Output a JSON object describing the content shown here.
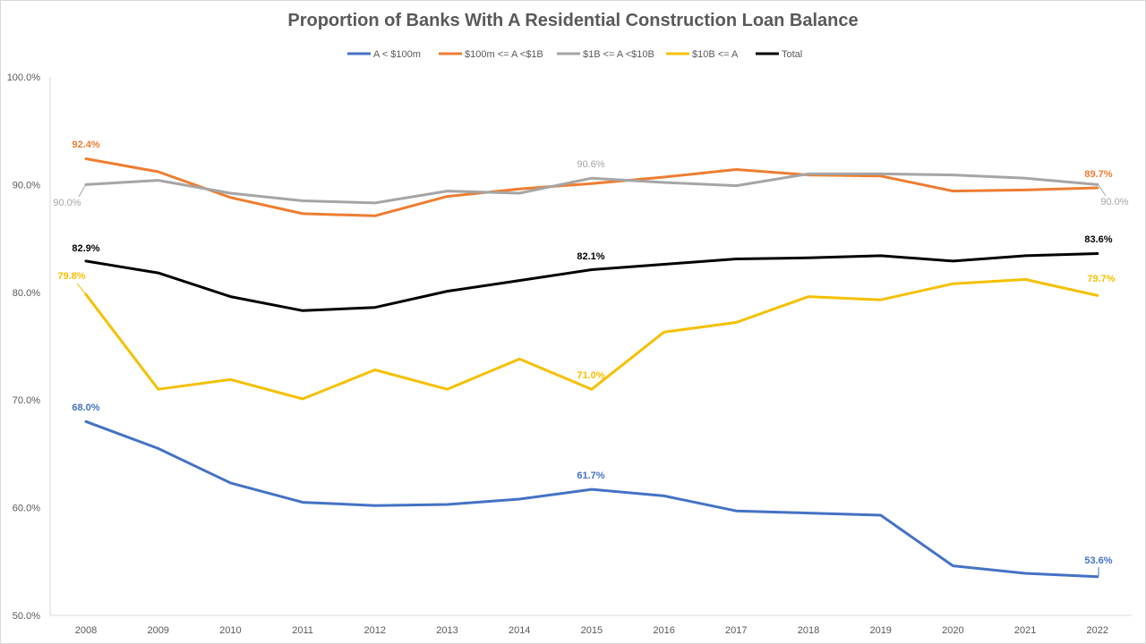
{
  "chart_data": {
    "type": "line",
    "title": "Proportion of Banks With A Residential Construction Loan Balance",
    "xlabel": "",
    "ylabel": "",
    "categories": [
      "2008",
      "2009",
      "2010",
      "2011",
      "2012",
      "2013",
      "2014",
      "2015",
      "2016",
      "2017",
      "2018",
      "2019",
      "2020",
      "2021",
      "2022"
    ],
    "ylim": [
      50,
      100
    ],
    "yticks": [
      "50.0%",
      "60.0%",
      "70.0%",
      "80.0%",
      "90.0%",
      "100.0%"
    ],
    "ytick_values": [
      50,
      60,
      70,
      80,
      90,
      100
    ],
    "grid": false,
    "legend": "top",
    "series": [
      {
        "name": "A < $100m",
        "color": "#4472c4",
        "values": [
          68.0,
          65.5,
          62.3,
          60.5,
          60.2,
          60.3,
          60.8,
          61.7,
          61.1,
          59.7,
          59.5,
          59.3,
          54.6,
          53.9,
          53.6
        ],
        "labels": {
          "0": "68.0%",
          "7": "61.7%",
          "14": "53.6%"
        }
      },
      {
        "name": "$100m <= A <$1B",
        "color": "#ed7d31",
        "values": [
          92.4,
          91.2,
          88.8,
          87.3,
          87.1,
          88.9,
          89.6,
          90.1,
          90.7,
          91.4,
          90.9,
          90.8,
          89.4,
          89.5,
          89.7
        ],
        "labels": {
          "0": "92.4%",
          "14": "89.7%"
        }
      },
      {
        "name": "$1B <= A <$10B",
        "color": "#a5a5a5",
        "values": [
          90.0,
          90.4,
          89.2,
          88.5,
          88.3,
          89.4,
          89.2,
          90.6,
          90.2,
          89.9,
          91.0,
          91.0,
          90.9,
          90.6,
          90.0
        ],
        "labels": {
          "0": "90.0%",
          "7": "90.6%",
          "14": "90.0%"
        }
      },
      {
        "name": "$10B <= A",
        "color": "#f5c000",
        "values": [
          79.8,
          71.0,
          71.9,
          70.1,
          72.8,
          71.0,
          73.8,
          71.0,
          76.3,
          77.2,
          79.6,
          79.3,
          80.8,
          81.2,
          79.7
        ],
        "labels": {
          "0": "79.8%",
          "7": "71.0%",
          "14": "79.7%"
        }
      },
      {
        "name": "Total",
        "color": "#000000",
        "values": [
          82.9,
          81.8,
          79.6,
          78.3,
          78.6,
          80.1,
          81.1,
          82.1,
          82.6,
          83.1,
          83.2,
          83.4,
          82.9,
          83.4,
          83.6
        ],
        "labels": {
          "0": "82.9%",
          "7": "82.1%",
          "14": "83.6%"
        }
      }
    ]
  }
}
